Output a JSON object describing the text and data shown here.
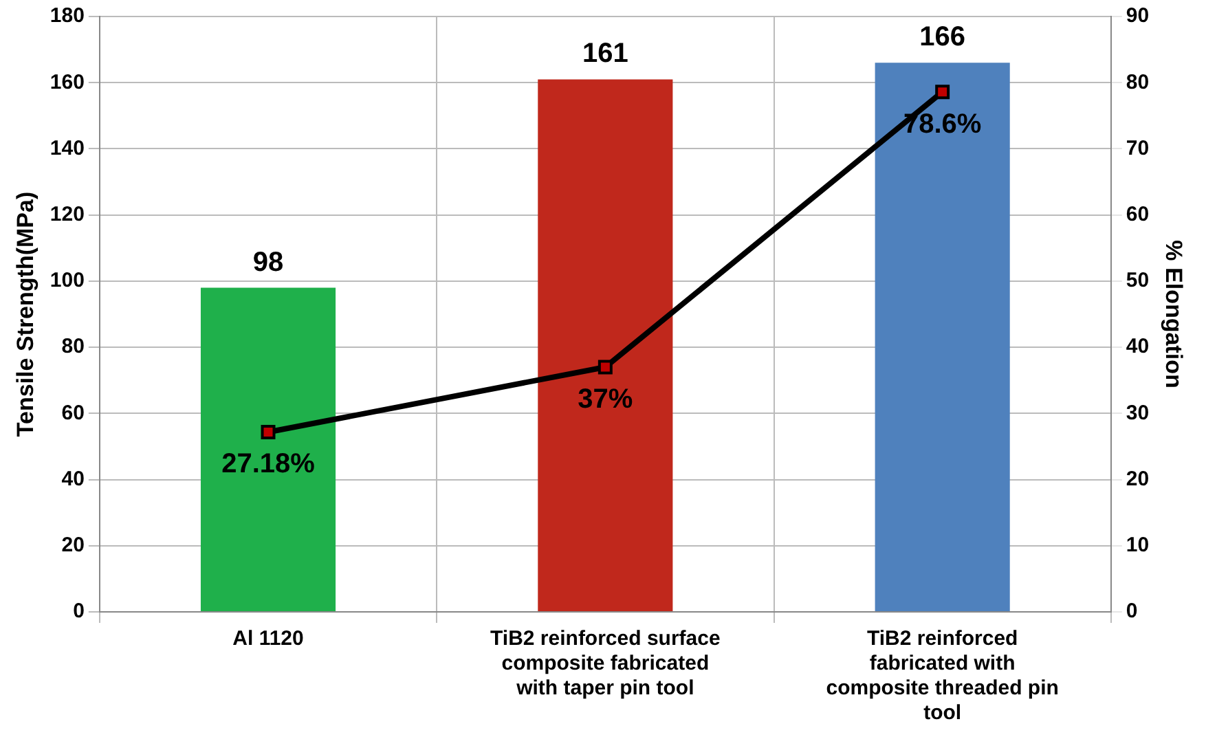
{
  "chart_data": {
    "type": "bar",
    "ylabel": "Tensile Strength(MPa)",
    "y2label": "% Elongation",
    "categories": [
      "Al 1120",
      "TiB2 reinforced surface composite fabricated with taper pin tool",
      "TiB2 reinforced fabricated with composite threaded pin tool"
    ],
    "series": [
      {
        "colors": [
          "#1fb04b",
          "#c0281c",
          "#4f81bd"
        ],
        "values": [
          98,
          161,
          166
        ],
        "value_labels": [
          "98",
          "161",
          "166"
        ]
      },
      {
        "type": "line",
        "axis": "y2",
        "color": "#000000",
        "values": [
          27.18,
          37,
          78.6
        ],
        "value_labels": [
          "27.18%",
          "37%",
          "78.6%"
        ]
      }
    ],
    "ylim": [
      0,
      180
    ],
    "yticks": [
      0,
      20,
      40,
      60,
      80,
      100,
      120,
      140,
      160,
      180
    ],
    "y2lim": [
      0,
      90
    ],
    "y2ticks": [
      0,
      10,
      20,
      30,
      40,
      50,
      60,
      70,
      80,
      90
    ],
    "grid": true,
    "legend": false,
    "marker": "square",
    "line_style": "solid"
  }
}
